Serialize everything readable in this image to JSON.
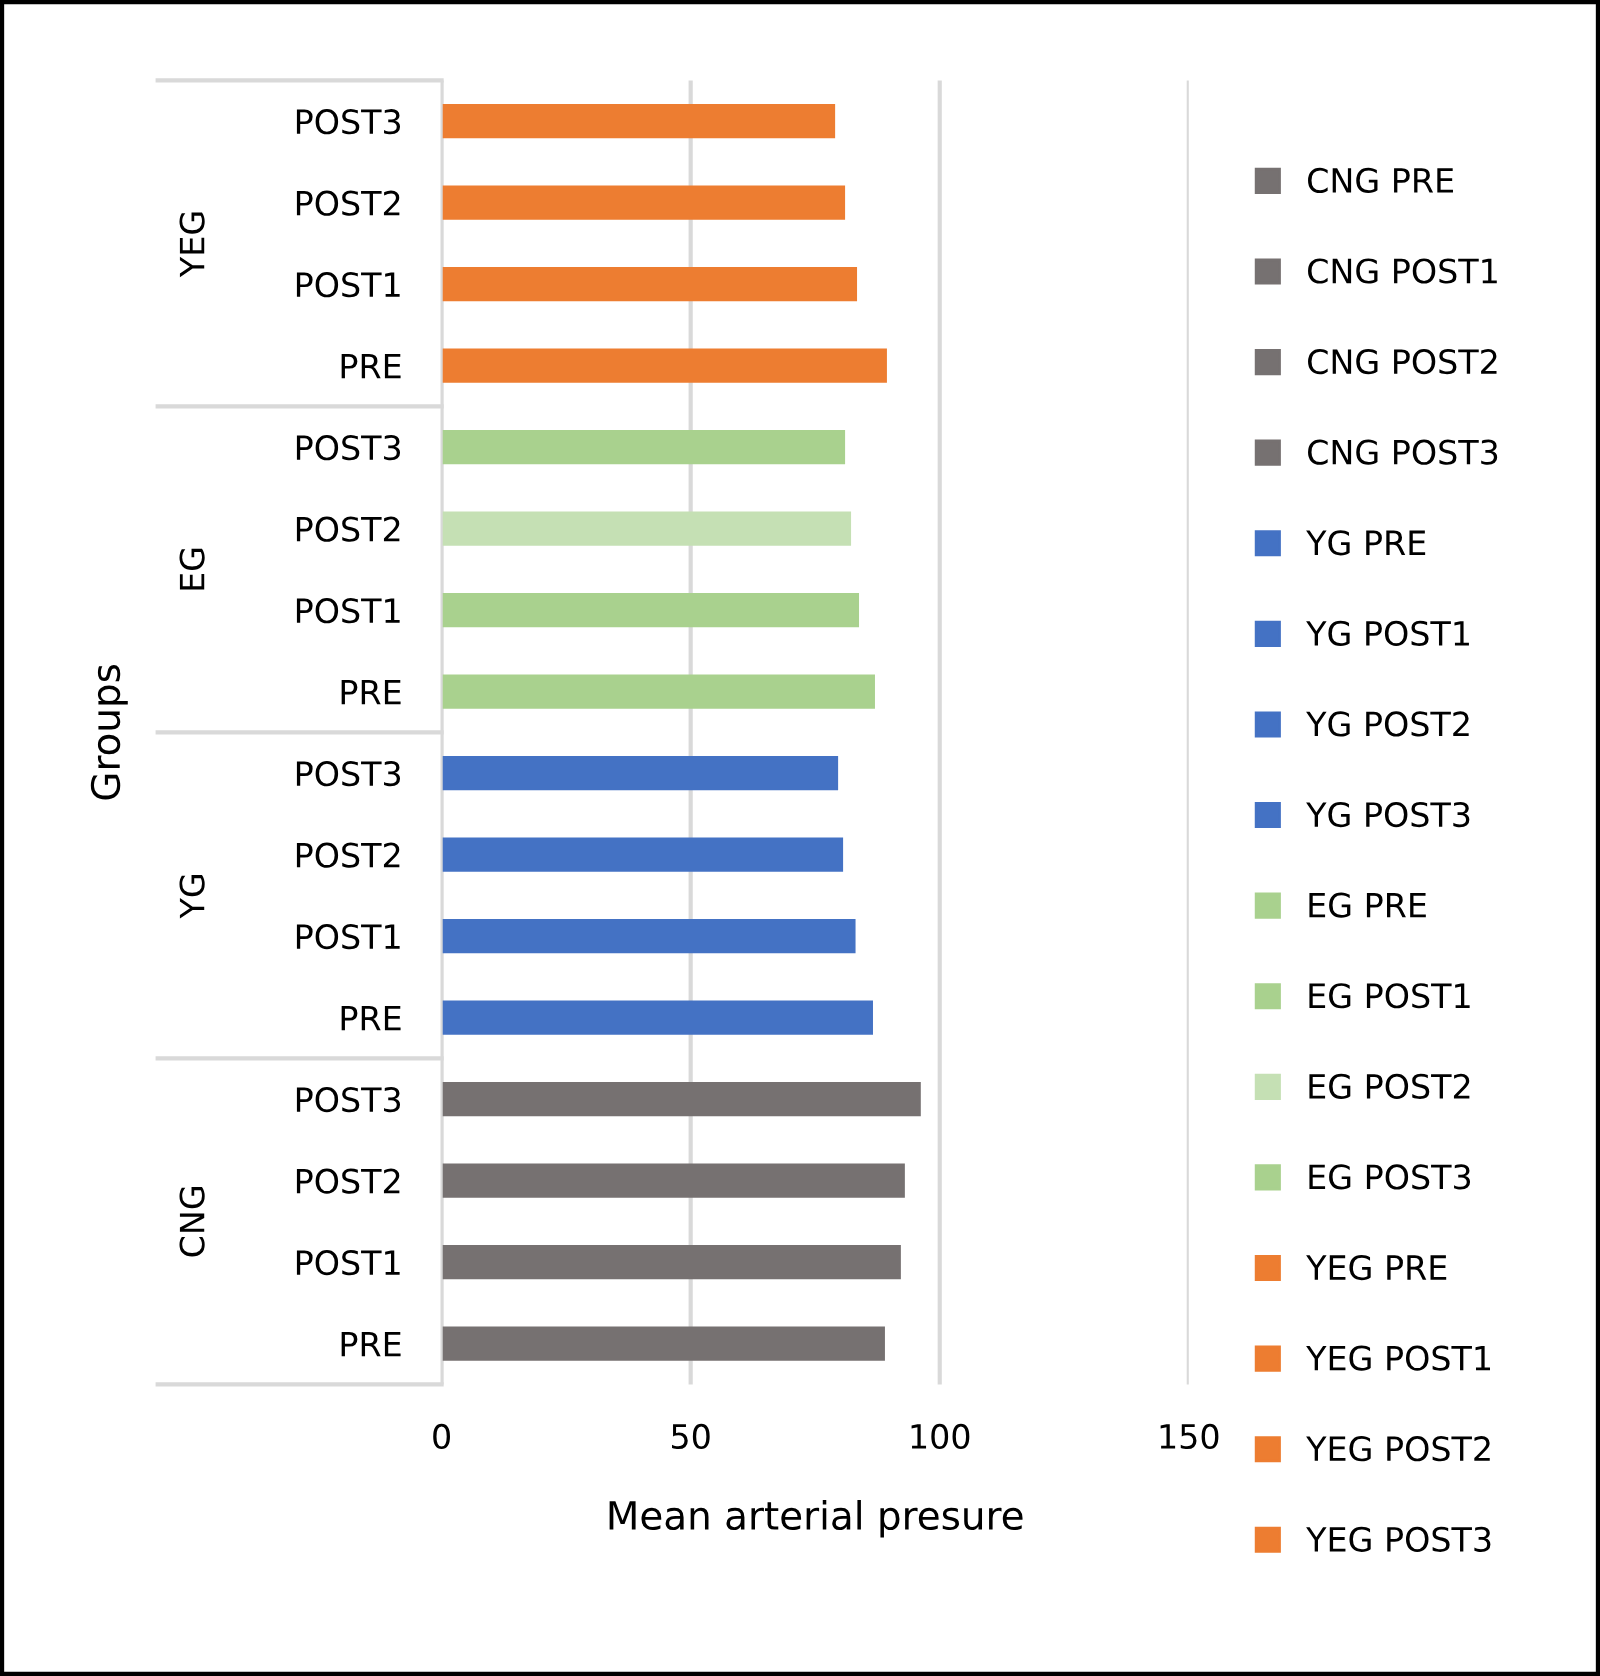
{
  "chart_data": {
    "type": "bar",
    "orientation": "horizontal",
    "xlabel": "Mean arterial presure",
    "ylabel": "Groups",
    "categories": [
      "POST3",
      "POST2",
      "POST1",
      "PRE",
      "POST3",
      "POST2",
      "POST1",
      "PRE",
      "POST3",
      "POST2",
      "POST1",
      "PRE",
      "POST3",
      "POST2",
      "POST1",
      "PRE"
    ],
    "annotations": [
      "YEG",
      "EG",
      "YG",
      "CNG"
    ],
    "xlim": [
      0,
      150
    ],
    "xticks": [
      0,
      50,
      100,
      150
    ],
    "grid": "x",
    "legend": "right",
    "series": [
      {
        "name": "CNG PRE",
        "color": "#767171",
        "values": [
          null,
          null,
          null,
          null,
          null,
          null,
          null,
          null,
          null,
          null,
          null,
          null,
          null,
          null,
          null,
          89
        ]
      },
      {
        "name": "CNG POST1",
        "color": "#767171",
        "values": [
          null,
          null,
          null,
          null,
          null,
          null,
          null,
          null,
          null,
          null,
          null,
          null,
          null,
          null,
          92.2,
          null
        ]
      },
      {
        "name": "CNG POST2",
        "color": "#767171",
        "values": [
          null,
          null,
          null,
          null,
          null,
          null,
          null,
          null,
          null,
          null,
          null,
          null,
          null,
          93,
          null,
          null
        ]
      },
      {
        "name": "CNG POST3",
        "color": "#767171",
        "values": [
          null,
          null,
          null,
          null,
          null,
          null,
          null,
          null,
          null,
          null,
          null,
          null,
          96.2,
          null,
          null,
          null
        ]
      },
      {
        "name": "YG PRE",
        "color": "#4472c4",
        "values": [
          null,
          null,
          null,
          null,
          null,
          null,
          null,
          null,
          null,
          null,
          null,
          86.6,
          null,
          null,
          null,
          null
        ]
      },
      {
        "name": "YG POST1",
        "color": "#4472c4",
        "values": [
          null,
          null,
          null,
          null,
          null,
          null,
          null,
          null,
          null,
          null,
          83.1,
          null,
          null,
          null,
          null,
          null
        ]
      },
      {
        "name": "YG POST2",
        "color": "#4472c4",
        "values": [
          null,
          null,
          null,
          null,
          null,
          null,
          null,
          null,
          null,
          80.6,
          null,
          null,
          null,
          null,
          null,
          null
        ]
      },
      {
        "name": "YG POST3",
        "color": "#4472c4",
        "values": [
          null,
          null,
          null,
          null,
          null,
          null,
          null,
          null,
          79.6,
          null,
          null,
          null,
          null,
          null,
          null,
          null
        ]
      },
      {
        "name": "EG PRE",
        "color": "#a9d18e",
        "values": [
          null,
          null,
          null,
          null,
          null,
          null,
          null,
          87,
          null,
          null,
          null,
          null,
          null,
          null,
          null,
          null
        ]
      },
      {
        "name": "EG POST1",
        "color": "#a9d18e",
        "values": [
          null,
          null,
          null,
          null,
          null,
          null,
          83.8,
          null,
          null,
          null,
          null,
          null,
          null,
          null,
          null,
          null
        ]
      },
      {
        "name": "EG POST2",
        "color": "#c5e0b4",
        "values": [
          null,
          null,
          null,
          null,
          null,
          82.2,
          null,
          null,
          null,
          null,
          null,
          null,
          null,
          null,
          null,
          null
        ]
      },
      {
        "name": "EG POST3",
        "color": "#a9d18e",
        "values": [
          null,
          null,
          null,
          null,
          81,
          null,
          null,
          null,
          null,
          null,
          null,
          null,
          null,
          null,
          null,
          null
        ]
      },
      {
        "name": "YEG PRE",
        "color": "#ed7d31",
        "values": [
          null,
          null,
          null,
          89.4,
          null,
          null,
          null,
          null,
          null,
          null,
          null,
          null,
          null,
          null,
          null,
          null
        ]
      },
      {
        "name": "YEG POST1",
        "color": "#ed7d31",
        "values": [
          null,
          null,
          83.4,
          null,
          null,
          null,
          null,
          null,
          null,
          null,
          null,
          null,
          null,
          null,
          null,
          null
        ]
      },
      {
        "name": "YEG POST2",
        "color": "#ed7d31",
        "values": [
          null,
          81,
          null,
          null,
          null,
          null,
          null,
          null,
          null,
          null,
          null,
          null,
          null,
          null,
          null,
          null
        ]
      },
      {
        "name": "YEG POST3",
        "color": "#ed7d31",
        "values": [
          79,
          null,
          null,
          null,
          null,
          null,
          null,
          null,
          null,
          null,
          null,
          null,
          null,
          null,
          null,
          null
        ]
      }
    ]
  }
}
